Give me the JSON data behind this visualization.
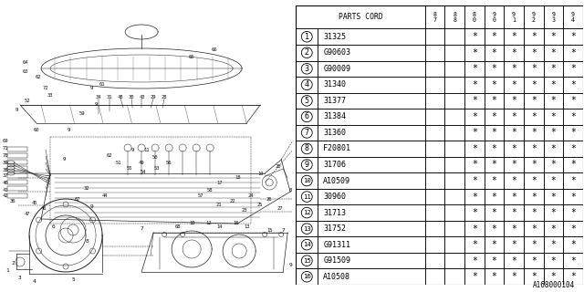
{
  "part_number": "A168000104",
  "col_headers": [
    "8\n7",
    "8\n8",
    "8\n0",
    "9\n0",
    "9\n1",
    "9\n2",
    "9\n3",
    "9\n4"
  ],
  "rows": [
    {
      "num": 1,
      "code": "31325",
      "stars": [
        false,
        false,
        true,
        true,
        true,
        true,
        true,
        true
      ]
    },
    {
      "num": 2,
      "code": "G90603",
      "stars": [
        false,
        false,
        true,
        true,
        true,
        true,
        true,
        true
      ]
    },
    {
      "num": 3,
      "code": "G90009",
      "stars": [
        false,
        false,
        true,
        true,
        true,
        true,
        true,
        true
      ]
    },
    {
      "num": 4,
      "code": "31340",
      "stars": [
        false,
        false,
        true,
        true,
        true,
        true,
        true,
        true
      ]
    },
    {
      "num": 5,
      "code": "31377",
      "stars": [
        false,
        false,
        true,
        true,
        true,
        true,
        true,
        true
      ]
    },
    {
      "num": 6,
      "code": "31384",
      "stars": [
        false,
        false,
        true,
        true,
        true,
        true,
        true,
        true
      ]
    },
    {
      "num": 7,
      "code": "31360",
      "stars": [
        false,
        false,
        true,
        true,
        true,
        true,
        true,
        true
      ]
    },
    {
      "num": 8,
      "code": "F20801",
      "stars": [
        false,
        false,
        true,
        true,
        true,
        true,
        true,
        true
      ]
    },
    {
      "num": 9,
      "code": "31706",
      "stars": [
        false,
        false,
        true,
        true,
        true,
        true,
        true,
        true
      ]
    },
    {
      "num": 10,
      "code": "A10509",
      "stars": [
        false,
        false,
        true,
        true,
        true,
        true,
        true,
        true
      ]
    },
    {
      "num": 11,
      "code": "30960",
      "stars": [
        false,
        false,
        true,
        true,
        true,
        true,
        true,
        true
      ]
    },
    {
      "num": 12,
      "code": "31713",
      "stars": [
        false,
        false,
        true,
        true,
        true,
        true,
        true,
        true
      ]
    },
    {
      "num": 13,
      "code": "31752",
      "stars": [
        false,
        false,
        true,
        true,
        true,
        true,
        true,
        true
      ]
    },
    {
      "num": 14,
      "code": "G91311",
      "stars": [
        false,
        false,
        true,
        true,
        true,
        true,
        true,
        true
      ]
    },
    {
      "num": 15,
      "code": "G91509",
      "stars": [
        false,
        false,
        true,
        true,
        true,
        true,
        true,
        true
      ]
    },
    {
      "num": 16,
      "code": "A10508",
      "stars": [
        false,
        false,
        true,
        true,
        true,
        true,
        true,
        true
      ]
    }
  ],
  "bg_color": "#ffffff",
  "line_color": "#000000",
  "text_color": "#000000"
}
